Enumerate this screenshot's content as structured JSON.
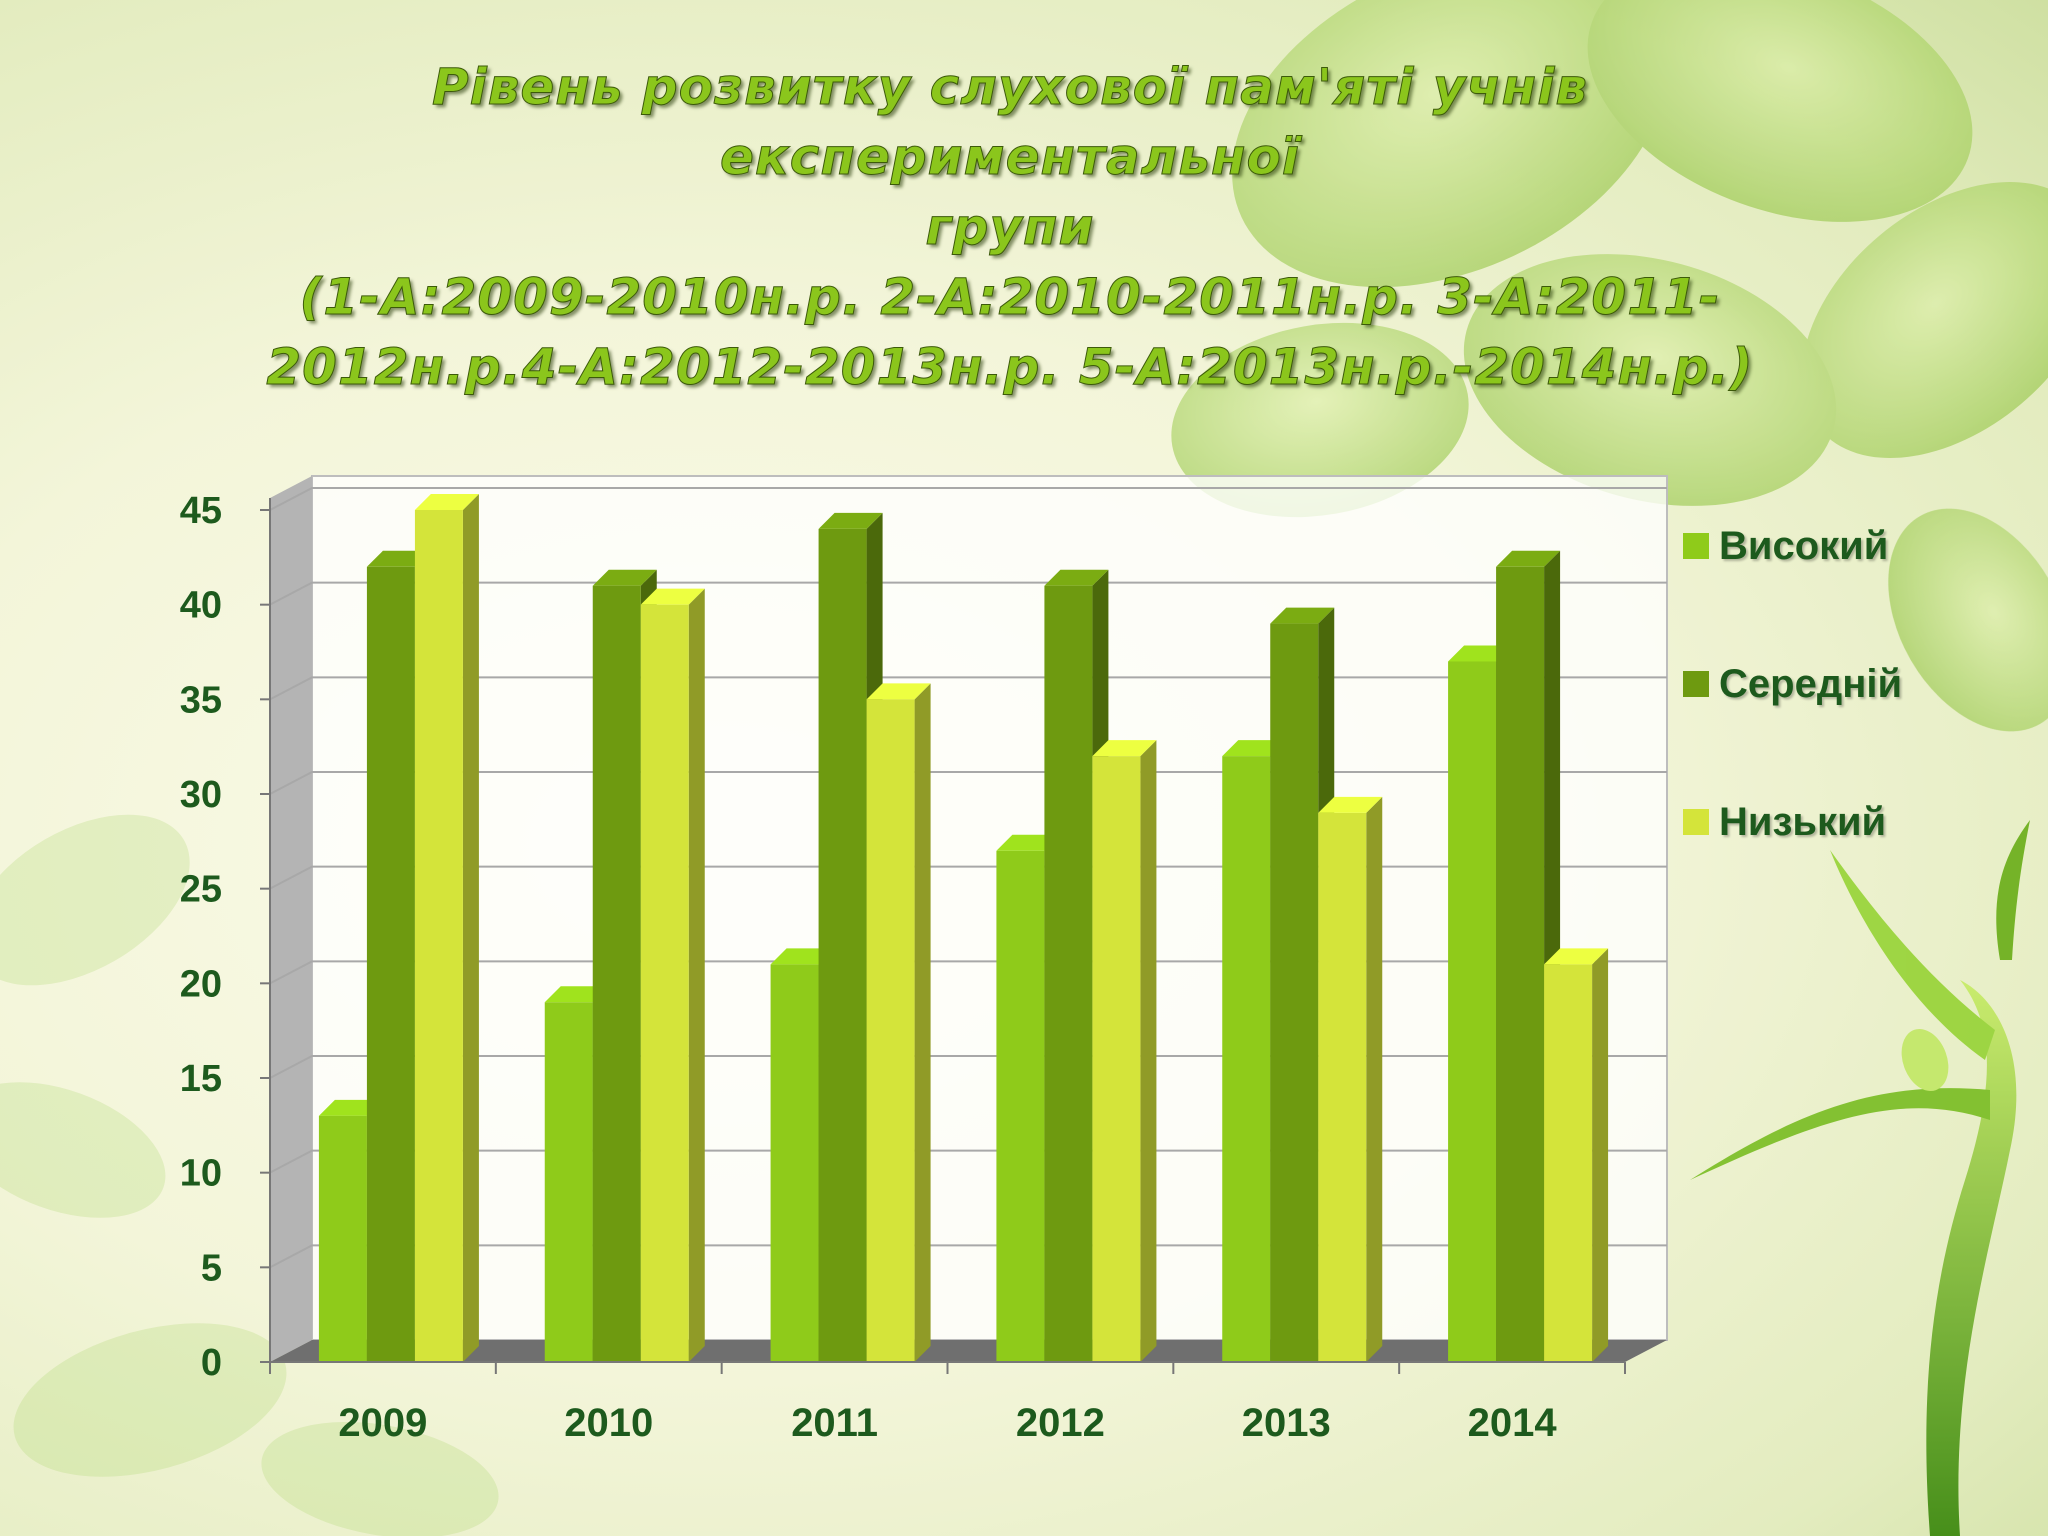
{
  "title": {
    "line1": "Рівень розвитку  слухової пам'яті учнів експериментальної",
    "line2": "групи",
    "line3": "(1-А:2009-2010н.р.  2-А:2010-2011н.р.  3-А:2011-",
    "line4": "2012н.р.4-А:2012-2013н.р.  5-А:2013н.р.-2014н.р.)"
  },
  "chart_data": {
    "type": "bar",
    "categories": [
      "2009",
      "2010",
      "2011",
      "2012",
      "2013",
      "2014"
    ],
    "series": [
      {
        "name": "Високий",
        "values": [
          13,
          19,
          21,
          27,
          32,
          37
        ],
        "color": "#8fcb1a"
      },
      {
        "name": "Середній",
        "values": [
          42,
          41,
          44,
          41,
          39,
          42
        ],
        "color": "#6e9a10"
      },
      {
        "name": "Низький",
        "values": [
          45,
          40,
          35,
          32,
          29,
          21
        ],
        "color": "#d4e43a"
      }
    ],
    "ylim": [
      0,
      45
    ],
    "yticks": [
      0,
      5,
      10,
      15,
      20,
      25,
      30,
      35,
      40,
      45
    ],
    "xlabel": "",
    "ylabel": "",
    "grid": true,
    "legend_position": "right"
  }
}
